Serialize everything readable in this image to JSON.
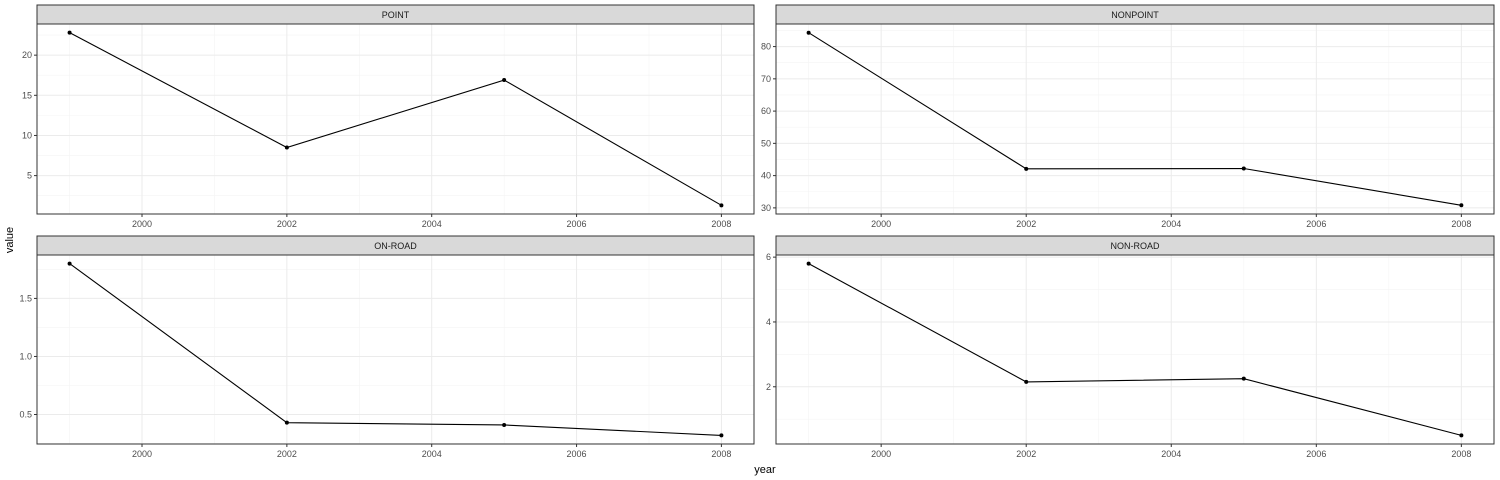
{
  "chart_data": {
    "type": "line",
    "layout": "facet-grid-2x2",
    "xlabel": "year",
    "ylabel": "value",
    "x": [
      1999,
      2002,
      2005,
      2008
    ],
    "x_ticks": [
      2000,
      2002,
      2004,
      2006,
      2008
    ],
    "xlim": [
      1998.55,
      2008.45
    ],
    "grid": true,
    "theme": "bw",
    "colors": {
      "line": "#000000",
      "strip": "#d9d9d9",
      "grid": "#ebebeb",
      "border": "#333333"
    },
    "panels": [
      {
        "title": "POINT",
        "values": [
          22.8,
          8.5,
          16.9,
          1.3
        ],
        "ylim": [
          0.22,
          23.88
        ],
        "y_ticks": [
          5,
          10,
          15,
          20
        ],
        "y_tick_labels": [
          "5",
          "10",
          "15",
          "20"
        ]
      },
      {
        "title": "NONPOINT",
        "values": [
          84.3,
          42.1,
          42.2,
          30.8
        ],
        "ylim": [
          28.1,
          87.0
        ],
        "y_ticks": [
          30,
          40,
          50,
          60,
          70,
          80
        ],
        "y_tick_labels": [
          "30",
          "40",
          "50",
          "60",
          "70",
          "80"
        ]
      },
      {
        "title": "ON-ROAD",
        "values": [
          1.8,
          0.43,
          0.41,
          0.32
        ],
        "ylim": [
          0.246,
          1.874
        ],
        "y_ticks": [
          0.5,
          1.0,
          1.5
        ],
        "y_tick_labels": [
          "0.5",
          "1.0",
          "1.5"
        ]
      },
      {
        "title": "NON-ROAD",
        "values": [
          5.8,
          2.15,
          2.25,
          0.5
        ],
        "ylim": [
          0.234,
          6.066
        ],
        "y_ticks": [
          2,
          4,
          6
        ],
        "y_tick_labels": [
          "2",
          "4",
          "6"
        ]
      }
    ]
  }
}
